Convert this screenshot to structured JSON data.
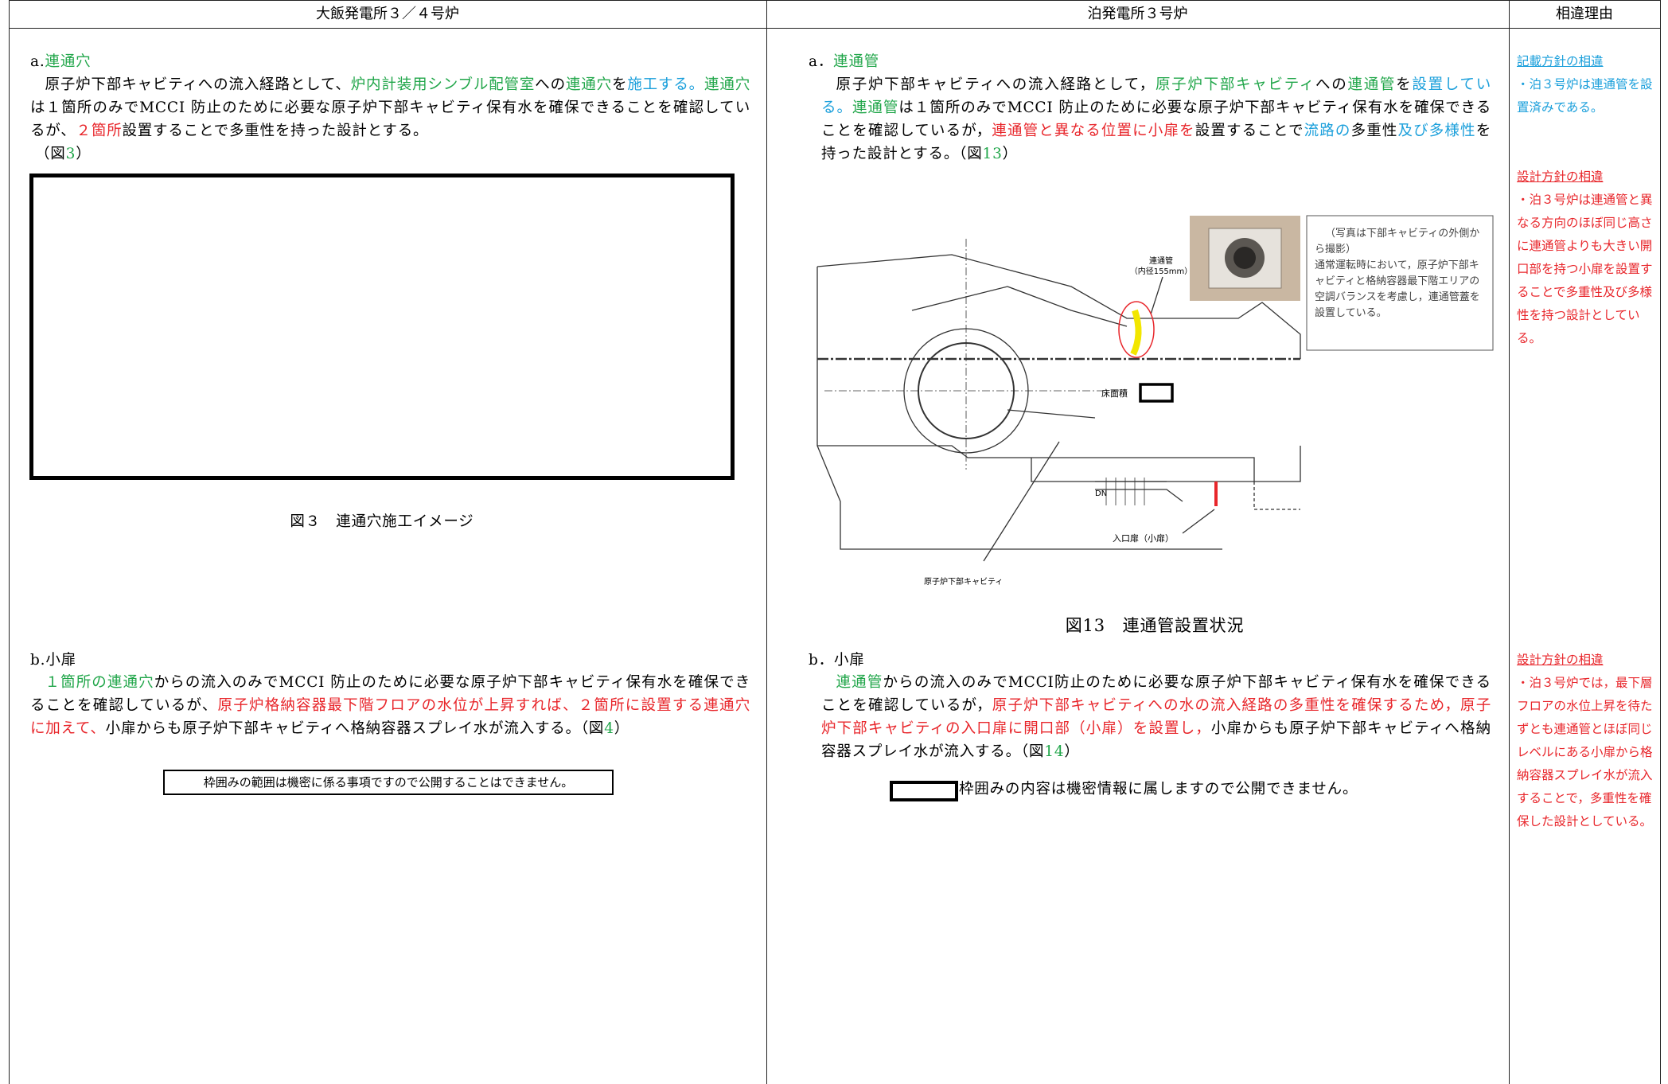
{
  "header": {
    "left": "大飯発電所３／４号炉",
    "middle": "泊発電所３号炉",
    "right": "相違理由"
  },
  "left": {
    "a_heading": [
      {
        "text": "a."
      },
      {
        "text": "連通穴",
        "color": "#21a64a"
      }
    ],
    "a_body": [
      {
        "text": "原子炉下部キャビティへの流入経路として、"
      },
      {
        "text": "炉内計装用シンブル配管室",
        "color": "#21a64a"
      },
      {
        "text": "への"
      },
      {
        "text": "連通穴",
        "color": "#21a64a"
      },
      {
        "text": "を"
      },
      {
        "text": "施工する。",
        "color": "#1a9fdb"
      },
      {
        "text": "連通穴",
        "color": "#21a64a"
      },
      {
        "text": "は１箇所のみでMCCI 防止のために必要な原子炉下部キャビティ保有水を確保できることを確認しているが、"
      },
      {
        "text": "２箇所",
        "color": "#e8262b"
      },
      {
        "text": "設置することで多重性を持った設計とする。"
      }
    ],
    "a_figref": [
      {
        "text": "（図"
      },
      {
        "text": "3",
        "color": "#21a64a"
      },
      {
        "text": "）"
      }
    ],
    "figure3_caption": "図３　連通穴施工イメージ",
    "b_heading": [
      {
        "text": "b.小扉"
      }
    ],
    "b_body": [
      {
        "text": "１箇所の連通穴",
        "color": "#21a64a"
      },
      {
        "text": "からの流入のみでMCCI 防止のために必要な原子炉下部キャビティ保有水を確保できることを確認しているが、"
      },
      {
        "text": "原子炉格納容器最下階フロアの水位が上昇すれば、２箇所に設置する連通穴に加えて、",
        "color": "#e8262b"
      },
      {
        "text": "小扉からも原子炉下部キャビティへ格納容器スプレイ水が流入する。（図"
      },
      {
        "text": "4",
        "color": "#21a64a"
      },
      {
        "text": "）"
      }
    ],
    "note": "枠囲みの範囲は機密に係る事項ですので公開することはできません。"
  },
  "middle": {
    "a_heading": [
      {
        "text": "a．"
      },
      {
        "text": "連通管",
        "color": "#21a64a"
      }
    ],
    "a_body": [
      {
        "text": "原子炉下部キャビティへの流入経路として，"
      },
      {
        "text": "原子炉下部キャビティ",
        "color": "#21a64a"
      },
      {
        "text": "への"
      },
      {
        "text": "連通管",
        "color": "#21a64a"
      },
      {
        "text": "を"
      },
      {
        "text": "設置している。",
        "color": "#1a9fdb"
      },
      {
        "text": "連通管",
        "color": "#21a64a"
      },
      {
        "text": "は１箇所のみでMCCI 防止のために必要な原子炉下部キャビティ保有水を確保できることを確認しているが，"
      },
      {
        "text": "連通管と異なる位置に小扉を",
        "color": "#e8262b"
      },
      {
        "text": "設置することで"
      },
      {
        "text": "流路の",
        "color": "#1a9fdb"
      },
      {
        "text": "多重性"
      },
      {
        "text": "及び多様性",
        "color": "#1a9fdb"
      },
      {
        "text": "を持った設計とする。（図"
      },
      {
        "text": "13",
        "color": "#21a64a"
      },
      {
        "text": "）"
      }
    ],
    "figure13": {
      "pipe_label": [
        "連通管",
        "（内径155mm）"
      ],
      "floor_label": "床面積",
      "dn_label": "DN",
      "door_label": "入口扉（小扉）",
      "cavity_label": "原子炉下部キャビティ",
      "photo_note": [
        "（写真は下部キャビティの外側から撮影）",
        "通常運転時において，原子炉下部キャビティと格納容器最下階エリアの空調バランスを考慮し，連通管蓋を設置している。"
      ]
    },
    "figure13_caption": "図13　連通管設置状況",
    "b_heading": [
      {
        "text": "b．"
      },
      {
        "text": "小扉"
      }
    ],
    "b_body": [
      {
        "text": "連通管",
        "color": "#21a64a"
      },
      {
        "text": "からの流入のみでMCCI防止のために必要な原子炉下部キャビティ保有水を確保できることを確認しているが，"
      },
      {
        "text": "原子炉下部キャビティへの水の流入経路の多重性を確保するため，原子炉下部キャビティの入口扉に開口部（小扉）を設置し，",
        "color": "#e8262b"
      },
      {
        "text": "小扉からも原子炉下部キャビティへ格納容器スプレイ水が流入する。（図"
      },
      {
        "text": "14",
        "color": "#21a64a"
      },
      {
        "text": "）"
      }
    ],
    "note": "枠囲みの内容は機密情報に属しますので公開できません。"
  },
  "reasons": [
    {
      "heading": "記載方針の相違",
      "body": "・泊３号炉は連通管を設置済みである。",
      "color": "#1a9fdb"
    },
    {
      "heading": "設計方針の相違",
      "body": "・泊３号炉は連通管と異なる方向のほぼ同じ高さに連通管よりも大きい開口部を持つ小扉を設置することで多重性及び多様性を持つ設計としている。",
      "color": "#e8262b"
    },
    {
      "heading": "設計方針の相違",
      "body": "・泊３号炉では，最下層フロアの水位上昇を待たずとも連通管とほぼ同じレベルにある小扉から格納容器スプレイ水が流入することで，多重性を確保した設計としている。",
      "color": "#e8262b"
    }
  ]
}
